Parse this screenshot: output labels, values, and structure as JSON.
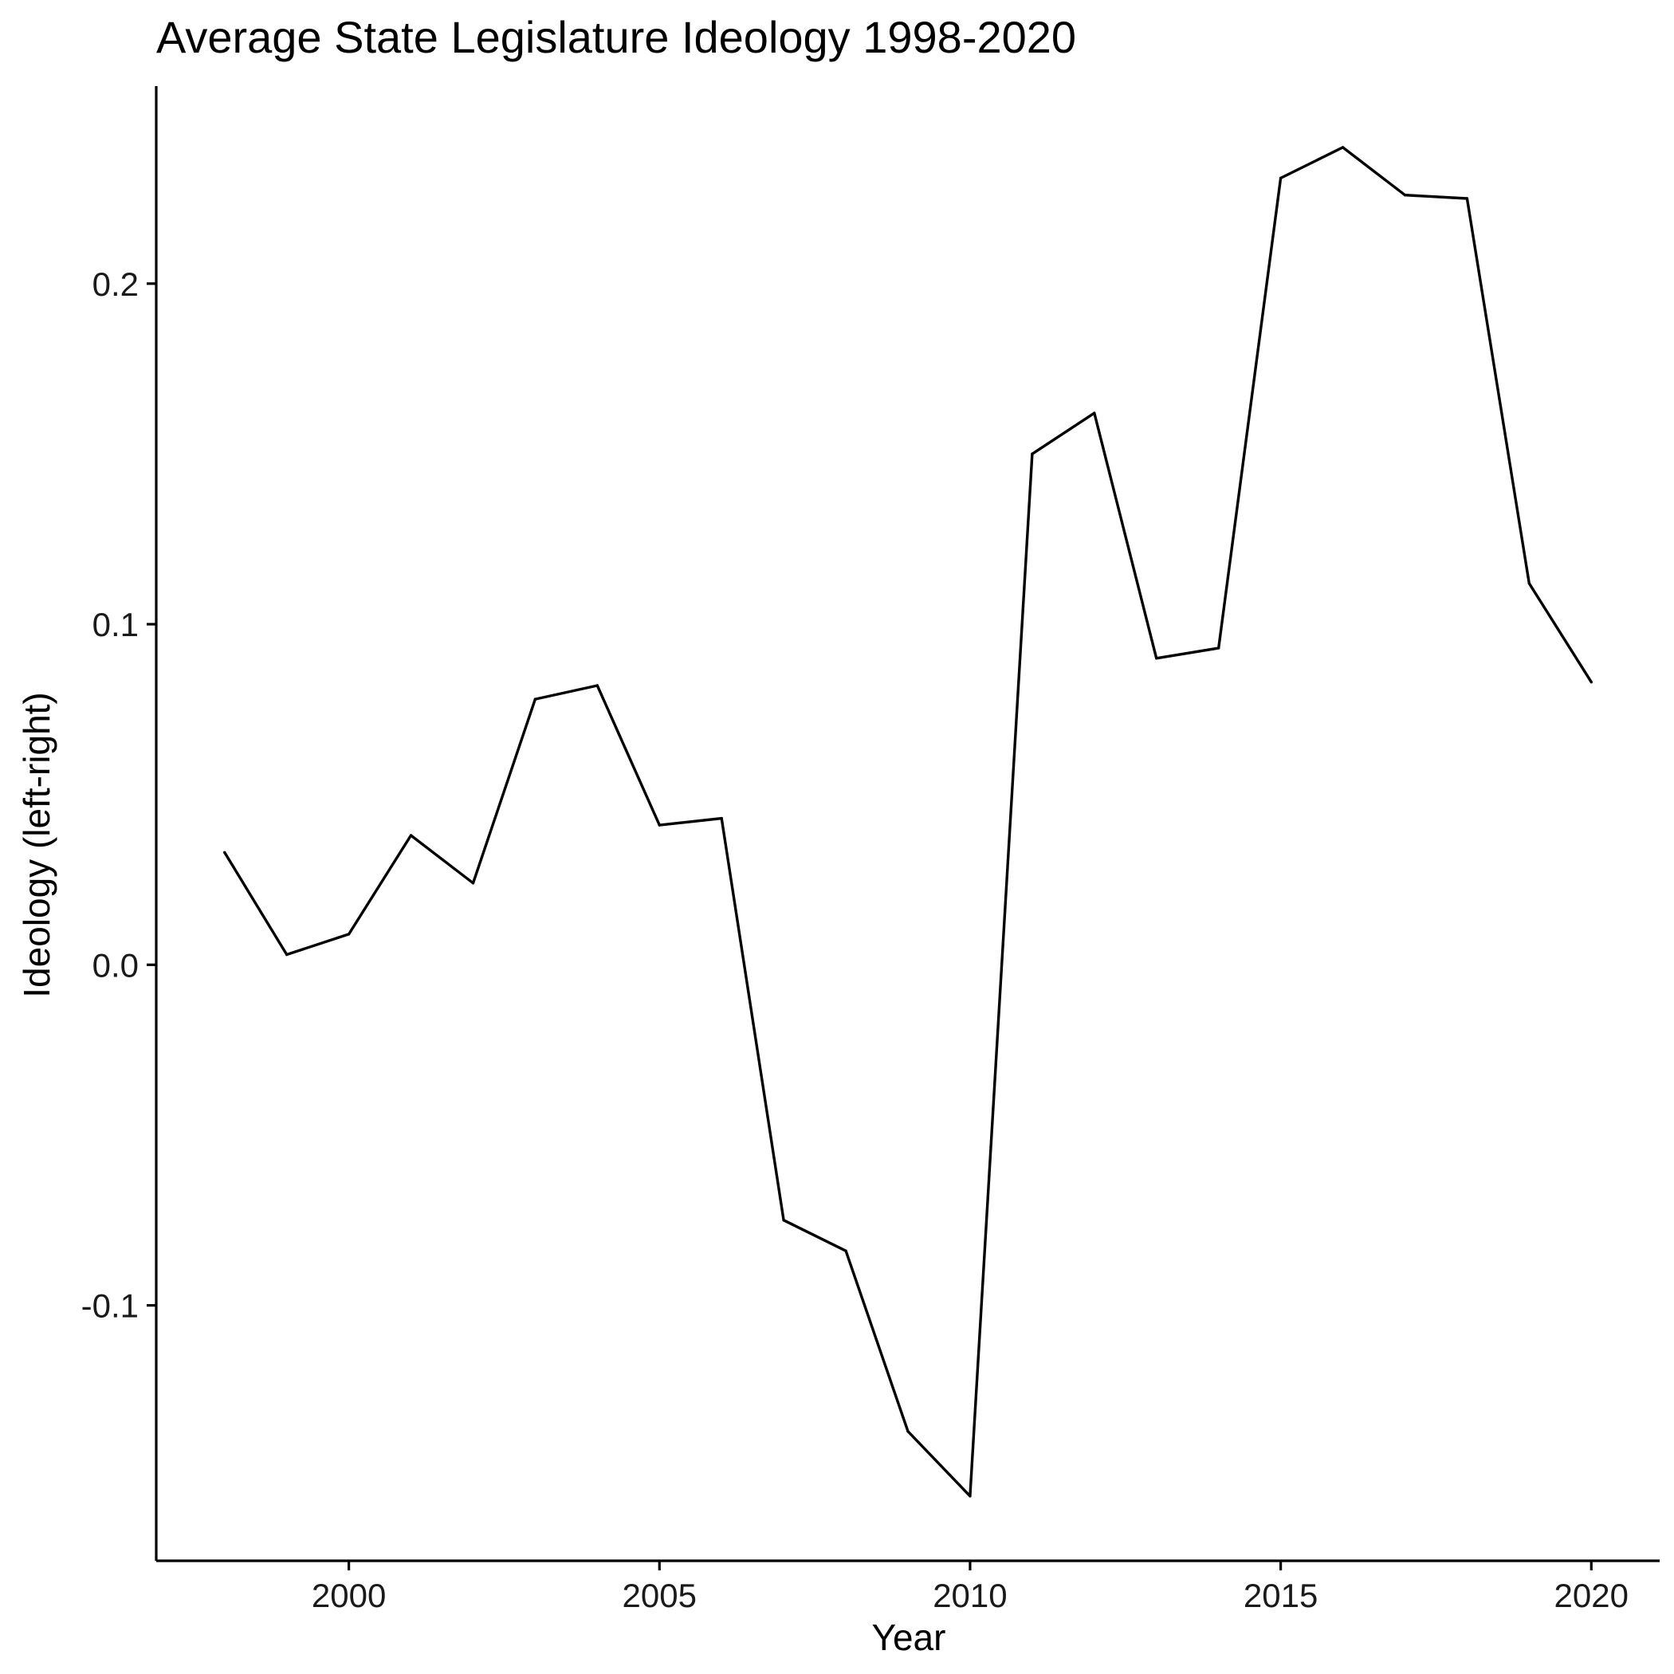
{
  "chart_data": {
    "type": "line",
    "title": "Average State Legislature Ideology 1998-2020",
    "xlabel": "Year",
    "ylabel": "Ideology (left-right)",
    "xlim": [
      1996.9,
      2021.1
    ],
    "ylim": [
      -0.175,
      0.258
    ],
    "x_ticks": [
      2000,
      2005,
      2010,
      2015,
      2020
    ],
    "y_ticks": [
      -0.1,
      0.0,
      0.1,
      0.2
    ],
    "x_tick_labels": [
      "2000",
      "2005",
      "2010",
      "2015",
      "2020"
    ],
    "y_tick_labels": [
      "-0.1",
      "0.0",
      "0.1",
      "0.2"
    ],
    "grid": false,
    "legend": "none",
    "series": [
      {
        "color": "#000000",
        "x": [
          1998,
          1999,
          2000,
          2001,
          2002,
          2003,
          2004,
          2005,
          2006,
          2007,
          2008,
          2009,
          2010,
          2011,
          2012,
          2013,
          2014,
          2015,
          2016,
          2017,
          2018,
          2019,
          2020
        ],
        "values": [
          0.033,
          0.003,
          0.009,
          0.038,
          0.024,
          0.078,
          0.082,
          0.041,
          0.043,
          -0.075,
          -0.084,
          -0.137,
          -0.156,
          0.15,
          0.162,
          0.09,
          0.093,
          0.231,
          0.24,
          0.226,
          0.225,
          0.112,
          0.083
        ]
      }
    ]
  }
}
